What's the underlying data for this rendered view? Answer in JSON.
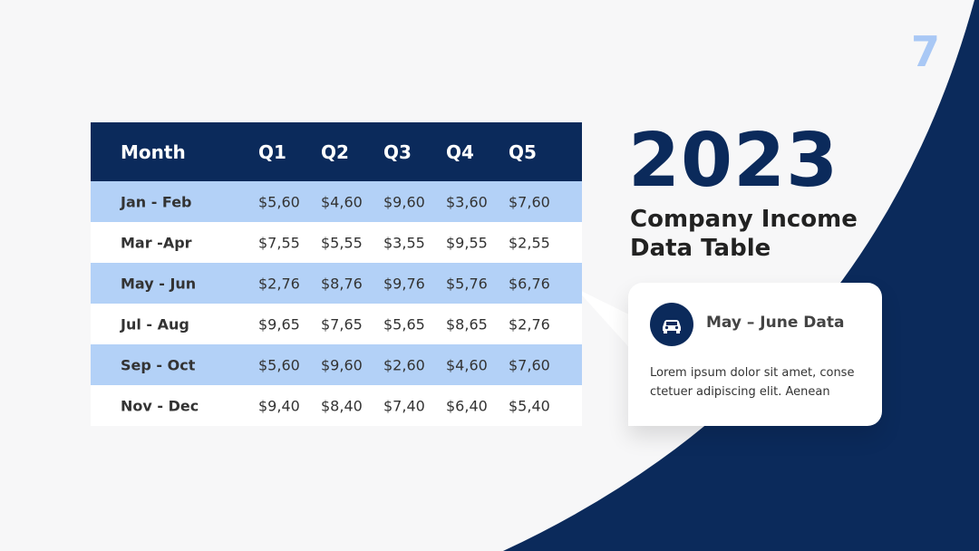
{
  "page_number": "7",
  "table": {
    "header": [
      "Month",
      "Q1",
      "Q2",
      "Q3",
      "Q4",
      "Q5"
    ],
    "rows": [
      [
        "Jan - Feb",
        "$5,60",
        "$4,60",
        "$9,60",
        "$3,60",
        "$7,60"
      ],
      [
        "Mar -Apr",
        "$7,55",
        "$5,55",
        "$3,55",
        "$9,55",
        "$2,55"
      ],
      [
        "May - Jun",
        "$2,76",
        "$8,76",
        "$9,76",
        "$5,76",
        "$6,76"
      ],
      [
        "Jul - Aug",
        "$9,65",
        "$7,65",
        "$5,65",
        "$8,65",
        "$2,76"
      ],
      [
        "Sep - Oct",
        "$5,60",
        "$9,60",
        "$2,60",
        "$4,60",
        "$7,60"
      ],
      [
        "Nov - Dec",
        "$9,40",
        "$8,40",
        "$7,40",
        "$6,40",
        "$5,40"
      ]
    ]
  },
  "header": {
    "title": "2023",
    "subtitle": "Company Income Data Table"
  },
  "callout": {
    "title": "May – June Data",
    "text": "Lorem ipsum dolor sit amet, conse ctetuer adipiscing elit. Aenean"
  }
}
